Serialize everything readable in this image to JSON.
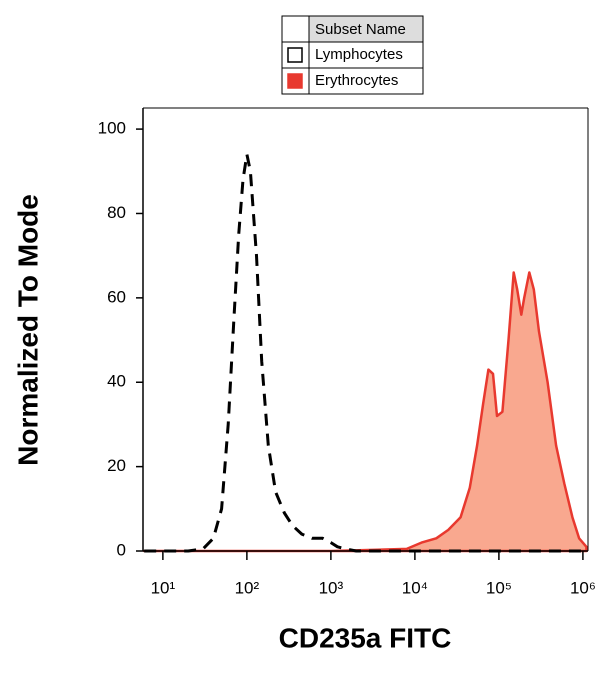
{
  "chart_data": {
    "type": "area",
    "xlabel": "CD235a FITC",
    "ylabel": "Normalized To Mode",
    "xscale": "log",
    "xlim": [
      5.8,
      1150000
    ],
    "ylim": [
      0,
      105
    ],
    "xticks": [
      {
        "value": 10,
        "label": "10¹"
      },
      {
        "value": 100,
        "label": "10²"
      },
      {
        "value": 1000,
        "label": "10³"
      },
      {
        "value": 10000,
        "label": "10⁴"
      },
      {
        "value": 100000,
        "label": "10⁵"
      },
      {
        "value": 1000000,
        "label": "10⁶"
      }
    ],
    "yticks": [
      0,
      20,
      40,
      60,
      80,
      100
    ],
    "legend_header": "Subset Name",
    "series": [
      {
        "name": "Lymphocytes",
        "color": "#000000",
        "fill": "none",
        "dashed": true,
        "x": [
          6,
          20,
          30,
          40,
          50,
          60,
          70,
          80,
          90,
          100,
          110,
          130,
          150,
          180,
          220,
          280,
          350,
          450,
          600,
          800,
          1000,
          1200,
          1500,
          2000,
          3000,
          10000,
          100000,
          1000000
        ],
        "values": [
          0,
          0,
          0.5,
          3,
          10,
          30,
          55,
          75,
          88,
          94,
          90,
          70,
          45,
          25,
          14,
          9,
          6,
          4,
          3,
          3,
          2,
          1,
          0.5,
          0,
          0,
          0,
          0,
          0
        ]
      },
      {
        "name": "Erythrocytes",
        "color": "#e8392f",
        "fill": "#f9a88f",
        "dashed": false,
        "x": [
          6,
          1000,
          8000,
          12000,
          18000,
          25000,
          35000,
          45000,
          55000,
          65000,
          75000,
          85000,
          95000,
          110000,
          130000,
          150000,
          165000,
          185000,
          200000,
          230000,
          260000,
          300000,
          380000,
          480000,
          600000,
          750000,
          900000,
          1100000
        ],
        "values": [
          0,
          0,
          0.5,
          2,
          3,
          5,
          8,
          15,
          25,
          35,
          43,
          42,
          32,
          33,
          50,
          66,
          62,
          56,
          60,
          66,
          62,
          52,
          40,
          25,
          16,
          8,
          3,
          1
        ]
      }
    ]
  }
}
